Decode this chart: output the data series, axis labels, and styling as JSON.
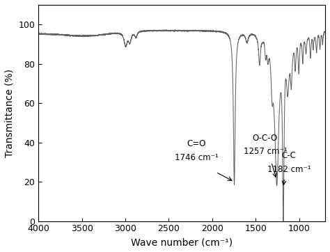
{
  "xlabel": "Wave number (cm⁻¹)",
  "ylabel": "Transmittance (%)",
  "xlim": [
    4000,
    700
  ],
  "ylim": [
    0,
    110
  ],
  "yticks": [
    0,
    20,
    40,
    60,
    80,
    100
  ],
  "xticks": [
    4000,
    3500,
    3000,
    2500,
    2000,
    1500,
    1000
  ],
  "line_color": "#606060",
  "background_color": "#ffffff",
  "tick_fontsize": 9,
  "label_fontsize": 10,
  "anno_fontsize": 8.5
}
